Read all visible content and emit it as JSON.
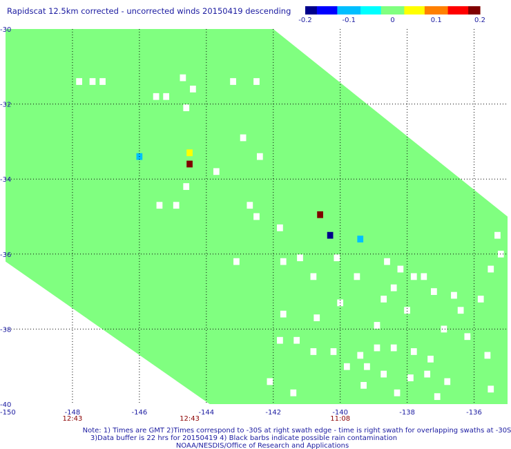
{
  "chart_data": {
    "type": "heatmap",
    "title": "Rapidscat 12.5km corrected - uncorrected winds 20150419 descending",
    "xlim": [
      -150,
      -135
    ],
    "ylim": [
      -40,
      -30
    ],
    "x_ticks": [
      "-150",
      "-148",
      "-146",
      "-144",
      "-142",
      "-140",
      "-138",
      "-136"
    ],
    "x_tick_values": [
      -150,
      -148,
      -146,
      -144,
      -142,
      -140,
      -138,
      -136
    ],
    "y_ticks": [
      "-30",
      "-32",
      "-34",
      "-36",
      "-38",
      "-40"
    ],
    "y_tick_values": [
      -30,
      -32,
      -34,
      -36,
      -38,
      -40
    ],
    "grid": true,
    "colorbar": {
      "range": [
        -0.2,
        0.2
      ],
      "ticks": [
        "-0.2",
        "-0.1",
        "0",
        "0.1",
        "0.2"
      ],
      "tick_values": [
        -0.2,
        -0.1,
        0,
        0.1,
        0.2
      ],
      "colors": [
        "#00008b",
        "#0000ff",
        "#00bfff",
        "#00ffff",
        "#80ff80",
        "#ffff00",
        "#ff8000",
        "#ff0000",
        "#800000"
      ]
    },
    "swath_color": "#80ff80",
    "swath_value": 0,
    "swath_corners": [
      {
        "lon": -150,
        "lat": -30
      },
      {
        "lon": -142,
        "lat": -30
      },
      {
        "lon": -135,
        "lat": -35
      },
      {
        "lon": -135,
        "lat": -40
      },
      {
        "lon": -143.9,
        "lat": -40
      },
      {
        "lon": -150,
        "lat": -36.2
      }
    ],
    "highlighted_cells": [
      {
        "lon": -144.5,
        "lat": -33.3,
        "value": 0.05
      },
      {
        "lon": -144.5,
        "lat": -33.6,
        "value": 0.2
      },
      {
        "lon": -146.0,
        "lat": -33.4,
        "value": -0.08
      },
      {
        "lon": -140.6,
        "lat": -34.95,
        "value": 0.2
      },
      {
        "lon": -140.3,
        "lat": -35.5,
        "value": -0.2
      },
      {
        "lon": -139.4,
        "lat": -35.6,
        "value": -0.1
      }
    ],
    "missing_cells": [
      {
        "lon": -147.8,
        "lat": -31.4
      },
      {
        "lon": -147.4,
        "lat": -31.4
      },
      {
        "lon": -147.1,
        "lat": -31.4
      },
      {
        "lon": -144.7,
        "lat": -31.3
      },
      {
        "lon": -143.2,
        "lat": -31.4
      },
      {
        "lon": -142.5,
        "lat": -31.4
      },
      {
        "lon": -145.5,
        "lat": -31.8
      },
      {
        "lon": -145.2,
        "lat": -31.8
      },
      {
        "lon": -144.4,
        "lat": -31.6
      },
      {
        "lon": -144.6,
        "lat": -32.1
      },
      {
        "lon": -143.7,
        "lat": -33.8
      },
      {
        "lon": -142.4,
        "lat": -33.4
      },
      {
        "lon": -142.9,
        "lat": -32.9
      },
      {
        "lon": -144.6,
        "lat": -34.2
      },
      {
        "lon": -144.9,
        "lat": -34.7
      },
      {
        "lon": -145.4,
        "lat": -34.7
      },
      {
        "lon": -142.7,
        "lat": -34.7
      },
      {
        "lon": -142.5,
        "lat": -35.0
      },
      {
        "lon": -141.8,
        "lat": -35.3
      },
      {
        "lon": -141.2,
        "lat": -36.1
      },
      {
        "lon": -140.1,
        "lat": -36.1
      },
      {
        "lon": -143.1,
        "lat": -36.2
      },
      {
        "lon": -141.7,
        "lat": -36.2
      },
      {
        "lon": -140.8,
        "lat": -36.6
      },
      {
        "lon": -139.5,
        "lat": -36.6
      },
      {
        "lon": -138.6,
        "lat": -36.2
      },
      {
        "lon": -138.2,
        "lat": -36.4
      },
      {
        "lon": -137.8,
        "lat": -36.6
      },
      {
        "lon": -137.5,
        "lat": -36.6
      },
      {
        "lon": -138.4,
        "lat": -36.9
      },
      {
        "lon": -137.2,
        "lat": -37.0
      },
      {
        "lon": -138.7,
        "lat": -37.2
      },
      {
        "lon": -141.7,
        "lat": -37.6
      },
      {
        "lon": -140.7,
        "lat": -37.7
      },
      {
        "lon": -140.0,
        "lat": -37.3
      },
      {
        "lon": -138.0,
        "lat": -37.5
      },
      {
        "lon": -136.6,
        "lat": -37.1
      },
      {
        "lon": -136.4,
        "lat": -37.5
      },
      {
        "lon": -138.9,
        "lat": -37.9
      },
      {
        "lon": -136.9,
        "lat": -38.0
      },
      {
        "lon": -135.8,
        "lat": -37.2
      },
      {
        "lon": -135.5,
        "lat": -36.4
      },
      {
        "lon": -135.2,
        "lat": -36.0
      },
      {
        "lon": -135.3,
        "lat": -35.5
      },
      {
        "lon": -135.6,
        "lat": -38.7
      },
      {
        "lon": -136.2,
        "lat": -38.2
      },
      {
        "lon": -141.8,
        "lat": -38.3
      },
      {
        "lon": -141.3,
        "lat": -38.3
      },
      {
        "lon": -140.8,
        "lat": -38.6
      },
      {
        "lon": -140.2,
        "lat": -38.6
      },
      {
        "lon": -139.4,
        "lat": -38.7
      },
      {
        "lon": -138.9,
        "lat": -38.5
      },
      {
        "lon": -138.4,
        "lat": -38.5
      },
      {
        "lon": -137.8,
        "lat": -38.6
      },
      {
        "lon": -137.3,
        "lat": -38.8
      },
      {
        "lon": -139.8,
        "lat": -39.0
      },
      {
        "lon": -139.2,
        "lat": -39.0
      },
      {
        "lon": -138.7,
        "lat": -39.2
      },
      {
        "lon": -137.9,
        "lat": -39.3
      },
      {
        "lon": -137.4,
        "lat": -39.2
      },
      {
        "lon": -136.8,
        "lat": -39.4
      },
      {
        "lon": -139.3,
        "lat": -39.5
      },
      {
        "lon": -138.3,
        "lat": -39.7
      },
      {
        "lon": -137.1,
        "lat": -39.8
      },
      {
        "lon": -135.5,
        "lat": -39.6
      },
      {
        "lon": -142.1,
        "lat": -39.4
      },
      {
        "lon": -141.4,
        "lat": -39.7
      }
    ],
    "time_labels": [
      {
        "lon": -148,
        "text": "12:43"
      },
      {
        "lon": -144.5,
        "text": "12:43"
      },
      {
        "lon": -140,
        "text": "11:08"
      }
    ],
    "notes": [
      "Note: 1) Times are GMT 2)Times correspond to -30S at right swath edge - time is right swath for overlapping swaths at -30S",
      "3)Data buffer is 22 hrs for 20150419 4) Black barbs indicate possible rain contamination",
      "NOAA/NESDIS/Office of Research and Applications"
    ]
  }
}
